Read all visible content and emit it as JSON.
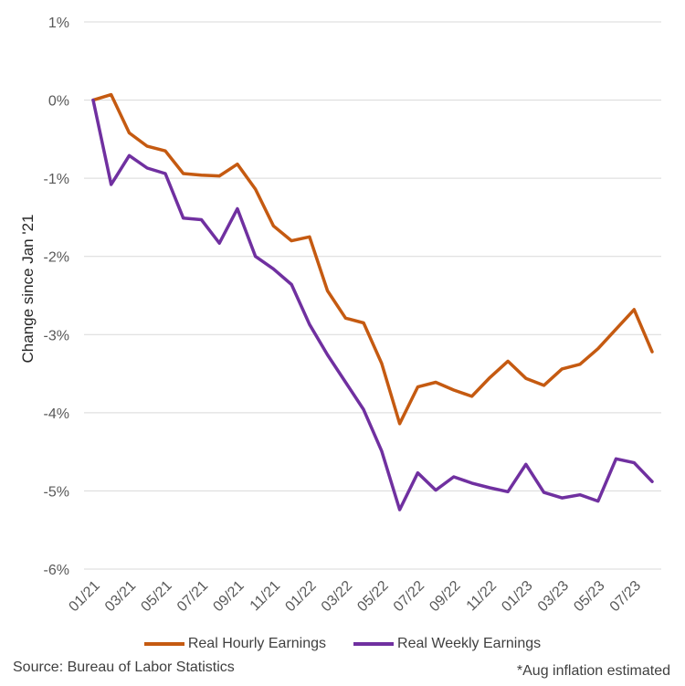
{
  "chart_data": {
    "type": "line",
    "title": "",
    "ylabel": "Change since Jan '21",
    "xlabel": "",
    "ylim": [
      -6,
      1
    ],
    "y_ticks": [
      1,
      0,
      -1,
      -2,
      -3,
      -4,
      -5,
      -6
    ],
    "y_tick_labels": [
      "1%",
      "0%",
      "-1%",
      "-2%",
      "-3%",
      "-4%",
      "-5%",
      "-6%"
    ],
    "x_labels": [
      "01/21",
      "02/21",
      "03/21",
      "04/21",
      "05/21",
      "06/21",
      "07/21",
      "08/21",
      "09/21",
      "10/21",
      "11/21",
      "12/21",
      "01/22",
      "02/22",
      "03/22",
      "04/22",
      "05/22",
      "06/22",
      "07/22",
      "08/22",
      "09/22",
      "10/22",
      "11/22",
      "12/22",
      "01/23",
      "02/23",
      "03/23",
      "04/23",
      "05/23",
      "06/23",
      "07/23",
      "08/23"
    ],
    "x_tick_labels": [
      "01/21",
      "03/21",
      "05/21",
      "07/21",
      "09/21",
      "11/21",
      "01/22",
      "03/22",
      "05/22",
      "07/22",
      "09/22",
      "11/22",
      "01/23",
      "03/23",
      "05/23",
      "07/23"
    ],
    "grid": true,
    "legend_position": "bottom",
    "series": [
      {
        "name": "Real Hourly Earnings",
        "color": "#C55A11",
        "values": [
          0.0,
          0.07,
          -0.42,
          -0.59,
          -0.65,
          -0.94,
          -0.96,
          -0.97,
          -0.82,
          -1.14,
          -1.61,
          -1.8,
          -1.75,
          -2.44,
          -2.79,
          -2.85,
          -3.37,
          -4.14,
          -3.67,
          -3.61,
          -3.71,
          -3.79,
          -3.55,
          -3.34,
          -3.56,
          -3.65,
          -3.44,
          -3.38,
          -3.18,
          -2.93,
          -2.68,
          -3.22
        ]
      },
      {
        "name": "Real Weekly Earnings",
        "color": "#7030A0",
        "values": [
          0.0,
          -1.08,
          -0.71,
          -0.87,
          -0.94,
          -1.51,
          -1.53,
          -1.83,
          -1.39,
          -2.0,
          -2.16,
          -2.36,
          -2.87,
          -3.26,
          -3.61,
          -3.96,
          -4.49,
          -5.24,
          -4.77,
          -4.99,
          -4.82,
          -4.9,
          -4.96,
          -5.01,
          -4.66,
          -5.02,
          -5.09,
          -5.05,
          -5.13,
          -4.59,
          -4.64,
          -4.88
        ]
      }
    ]
  },
  "footer": {
    "source": "Source: Bureau of Labor Statistics",
    "note": "*Aug inflation estimated"
  }
}
